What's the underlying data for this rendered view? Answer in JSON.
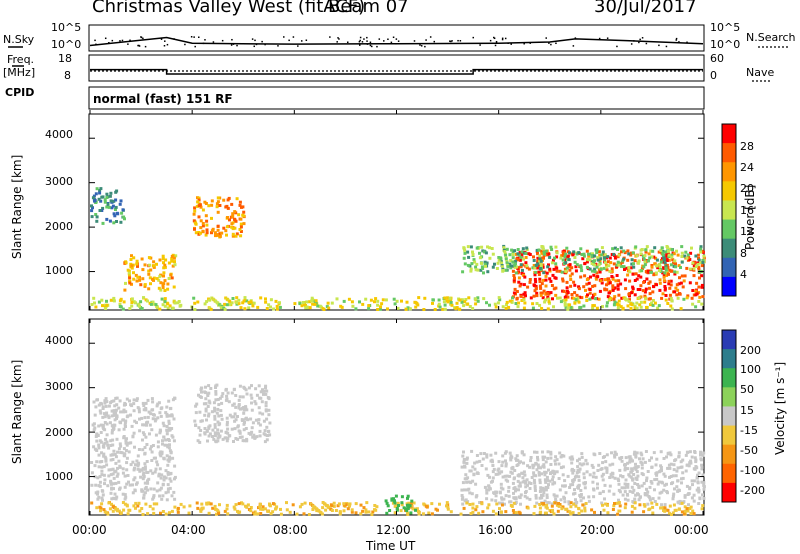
{
  "header": {
    "station": "Christmas Valley West (fitACF)",
    "beam": "Beam 07",
    "date": "30/Jul/2017"
  },
  "top_panels": {
    "nsky_label": "N.Sky",
    "nsky_ticks": [
      "10^5",
      "10^0"
    ],
    "nsearch_label": "N.Search",
    "nsearch_ticks": [
      "10^5",
      "10^0"
    ],
    "freq_label": "Freq.",
    "freq_unit": "[MHz]",
    "freq_ticks": [
      "18",
      "8"
    ],
    "nave_label": "Nave",
    "nave_ticks": [
      "60",
      "0"
    ],
    "cpid_label": "CPID",
    "cpid_value": "normal (fast) 151 RF"
  },
  "axes": {
    "ylabel": "Slant Range [km]",
    "yticks": [
      "4000",
      "3000",
      "2000",
      "1000"
    ],
    "xlabel": "Time UT",
    "xticks": [
      "00:00",
      "04:00",
      "08:00",
      "12:00",
      "16:00",
      "20:00",
      "00:00"
    ]
  },
  "colorbars": {
    "power": {
      "label": "Power [dB]",
      "ticks": [
        "28",
        "24",
        "20",
        "16",
        "12",
        "8",
        "4"
      ],
      "colors": [
        "#ff0000",
        "#ff5a00",
        "#ff9600",
        "#f5c800",
        "#c8e650",
        "#64c864",
        "#3c8c78",
        "#3264b4",
        "#0000ff"
      ]
    },
    "velocity": {
      "label": "Velocity [m s⁻¹]",
      "ticks": [
        "200",
        "100",
        "50",
        "15",
        "-15",
        "-50",
        "-100",
        "-200"
      ],
      "colors": [
        "#2a3cb4",
        "#2d7d8c",
        "#3cb450",
        "#8cd25a",
        "#c8c8c8",
        "#f0c83c",
        "#f59614",
        "#ff6400",
        "#ff0000"
      ]
    }
  },
  "chart_data": [
    {
      "type": "line",
      "title": "N.Sky",
      "x": [
        "00:00",
        "03:00",
        "04:00",
        "08:00",
        "12:00",
        "16:00",
        "18:00",
        "19:00",
        "21:00",
        "24:00"
      ],
      "values": [
        0.8,
        2.6,
        1.3,
        1.1,
        1.2,
        1.3,
        1.6,
        2.3,
        1.9,
        1.2
      ],
      "ylim": [
        0,
        5
      ]
    },
    {
      "type": "line",
      "title": "Freq.",
      "x": [
        "00:00",
        "03:00",
        "03:00",
        "15:00",
        "15:00",
        "24:00"
      ],
      "values": [
        12.3,
        12.3,
        10.5,
        10.5,
        12.3,
        12.3
      ],
      "ylim": [
        8,
        18
      ]
    },
    {
      "type": "heatmap",
      "title": "Power",
      "x": [
        "00:00",
        "04:00",
        "08:00",
        "12:00",
        "16:00",
        "20:00",
        "00:00"
      ],
      "ylabel": "Slant Range [km]",
      "ylim": [
        180,
        4500
      ],
      "xlabel": "Time UT",
      "xlim": [
        0,
        24
      ],
      "regions": [
        {
          "t": [
            0.0,
            1.3
          ],
          "r": [
            2100,
            2900
          ],
          "power": 8
        },
        {
          "t": [
            1.3,
            3.3
          ],
          "r": [
            600,
            1400
          ],
          "power": 20
        },
        {
          "t": [
            4.0,
            6.0
          ],
          "r": [
            1800,
            2700
          ],
          "power": 22
        },
        {
          "t": [
            16.5,
            24.0
          ],
          "r": [
            400,
            1500
          ],
          "power": 26
        },
        {
          "t": [
            14.5,
            24.0
          ],
          "r": [
            1000,
            1600
          ],
          "power": 12
        },
        {
          "t": [
            0.0,
            24.0
          ],
          "r": [
            180,
            450
          ],
          "power": 16
        }
      ]
    },
    {
      "type": "heatmap",
      "title": "Velocity",
      "x": [
        "00:00",
        "04:00",
        "08:00",
        "12:00",
        "16:00",
        "20:00",
        "00:00"
      ],
      "ylabel": "Slant Range [km]",
      "ylim": [
        180,
        4500
      ],
      "xlabel": "Time UT",
      "xlim": [
        0,
        24
      ],
      "regions": [
        {
          "t": [
            0.0,
            3.3
          ],
          "r": [
            500,
            2800
          ],
          "velocity": 0
        },
        {
          "t": [
            4.0,
            7.0
          ],
          "r": [
            1800,
            3100
          ],
          "velocity": 0
        },
        {
          "t": [
            14.5,
            24.0
          ],
          "r": [
            400,
            1600
          ],
          "velocity": 0
        },
        {
          "t": [
            0.0,
            24.0
          ],
          "r": [
            180,
            450
          ],
          "velocity": -30
        },
        {
          "t": [
            11.5,
            12.7
          ],
          "r": [
            200,
            600
          ],
          "velocity": 40
        }
      ]
    }
  ]
}
